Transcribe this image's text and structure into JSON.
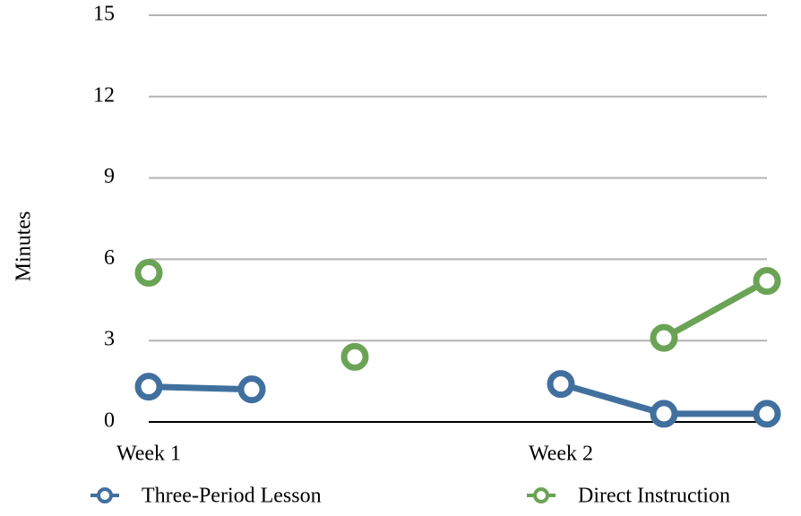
{
  "chart_data": {
    "type": "line",
    "categories": [
      "Week 1",
      null,
      null,
      null,
      "Week 2",
      null,
      null
    ],
    "series": [
      {
        "name": "Three-Period Lesson",
        "color": "#41709f",
        "values": [
          1.3,
          1.2,
          null,
          null,
          1.4,
          0.3,
          0.3
        ]
      },
      {
        "name": "Direct Instruction",
        "color": "#6aa356",
        "values": [
          5.5,
          null,
          2.4,
          null,
          null,
          3.1,
          5.2
        ]
      }
    ],
    "ylabel": "Minutes",
    "ylim": [
      0,
      15
    ],
    "yticks": [
      0,
      3,
      6,
      9,
      12,
      15
    ],
    "grid": true,
    "legend": "bottom"
  }
}
